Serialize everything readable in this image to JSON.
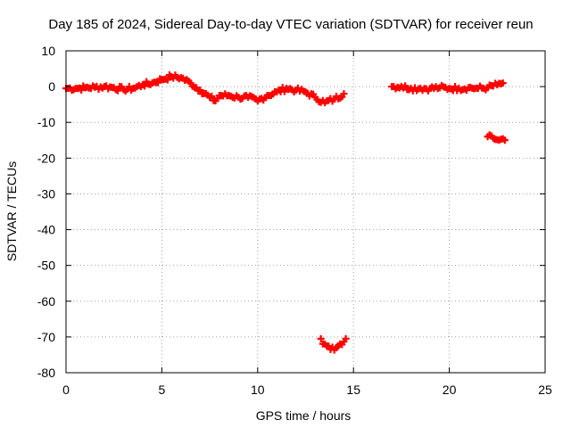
{
  "chart_data": {
    "type": "scatter",
    "title": "Day 185 of 2024, Sidereal Day-to-day VTEC variation (SDTVAR) for receiver reun",
    "xlabel": "GPS time / hours",
    "ylabel": "SDTVAR / TECUs",
    "xlim": [
      0,
      25
    ],
    "ylim": [
      -80,
      10
    ],
    "xticks": [
      0,
      5,
      10,
      15,
      20,
      25
    ],
    "yticks": [
      10,
      0,
      -10,
      -20,
      -30,
      -40,
      -50,
      -60,
      -70,
      -80
    ],
    "x_tick_labels": [
      "0",
      "5",
      "10",
      "15",
      "20",
      "25"
    ],
    "y_tick_labels": [
      "10",
      "0",
      "-10",
      "-20",
      "-30",
      "-40",
      "-50",
      "-60",
      "-70",
      "-80"
    ],
    "grid": true,
    "marker": "+",
    "color": "#ff0000",
    "series": [
      {
        "name": "main-track",
        "points": [
          [
            0.0,
            -0.5
          ],
          [
            0.5,
            -0.5
          ],
          [
            1.0,
            -0.3
          ],
          [
            1.5,
            -0.2
          ],
          [
            2.0,
            0.0
          ],
          [
            2.5,
            -0.3
          ],
          [
            3.0,
            -0.8
          ],
          [
            3.5,
            -0.5
          ],
          [
            4.0,
            0.5
          ],
          [
            4.5,
            1.0
          ],
          [
            5.0,
            2.0
          ],
          [
            5.5,
            2.8
          ],
          [
            6.0,
            2.5
          ],
          [
            6.5,
            1.0
          ],
          [
            7.0,
            -1.0
          ],
          [
            7.5,
            -3.0
          ],
          [
            7.8,
            -4.0
          ],
          [
            8.0,
            -2.5
          ],
          [
            8.5,
            -2.5
          ],
          [
            9.0,
            -3.0
          ],
          [
            9.5,
            -3.0
          ],
          [
            10.0,
            -4.0
          ],
          [
            10.5,
            -2.5
          ],
          [
            11.0,
            -1.5
          ],
          [
            11.5,
            -0.5
          ],
          [
            12.0,
            -1.0
          ],
          [
            12.5,
            -1.5
          ],
          [
            13.0,
            -3.0
          ],
          [
            13.5,
            -4.5
          ],
          [
            14.0,
            -3.5
          ],
          [
            14.5,
            -2.0
          ]
        ]
      },
      {
        "name": "dip-track",
        "points": [
          [
            13.3,
            -70.5
          ],
          [
            13.5,
            -72.0
          ],
          [
            13.8,
            -73.5
          ],
          [
            14.1,
            -73.0
          ],
          [
            14.3,
            -72.0
          ],
          [
            14.6,
            -70.5
          ]
        ]
      },
      {
        "name": "late-track",
        "points": [
          [
            17.0,
            0.0
          ],
          [
            17.5,
            0.0
          ],
          [
            18.0,
            -0.5
          ],
          [
            18.5,
            -0.5
          ],
          [
            19.0,
            -0.5
          ],
          [
            19.5,
            -0.3
          ],
          [
            20.0,
            -0.5
          ],
          [
            20.5,
            -0.5
          ],
          [
            21.0,
            -0.3
          ],
          [
            21.5,
            -0.5
          ],
          [
            22.0,
            -0.3
          ],
          [
            22.5,
            0.5
          ],
          [
            22.8,
            1.0
          ]
        ]
      },
      {
        "name": "offset-track",
        "points": [
          [
            22.0,
            -14.0
          ],
          [
            22.3,
            -14.5
          ],
          [
            22.6,
            -15.0
          ],
          [
            22.9,
            -15.0
          ]
        ]
      }
    ]
  }
}
